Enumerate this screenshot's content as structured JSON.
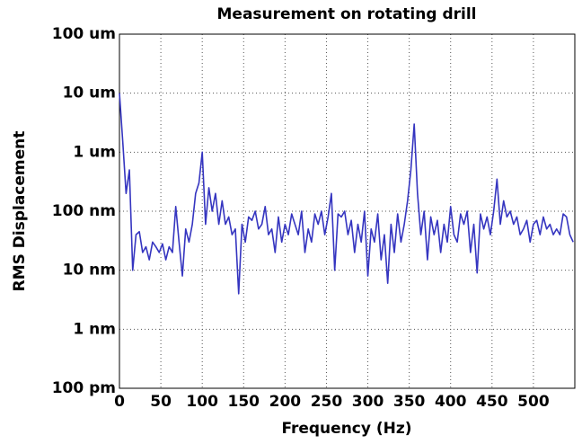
{
  "chart_data": {
    "type": "line",
    "title": "Measurement on rotating drill",
    "x_label": "Frequency (Hz)",
    "y_label": "RMS Displacement",
    "y_scale": "log",
    "grid": true,
    "xlim": [
      0,
      550
    ],
    "xticks": [
      0,
      50,
      100,
      150,
      200,
      250,
      300,
      350,
      400,
      450,
      500
    ],
    "ylim": [
      0.1,
      100000
    ],
    "yticks": [
      {
        "value": 0.1,
        "label": "100 pm"
      },
      {
        "value": 1,
        "label": "1 nm"
      },
      {
        "value": 10,
        "label": "10 nm"
      },
      {
        "value": 100,
        "label": "100 nm"
      },
      {
        "value": 1000,
        "label": "1 um"
      },
      {
        "value": 10000,
        "label": "10 um"
      },
      {
        "value": 100000,
        "label": "100 um"
      }
    ],
    "x": [
      0,
      4,
      8,
      12,
      16,
      20,
      24,
      28,
      32,
      36,
      40,
      44,
      48,
      52,
      56,
      60,
      64,
      68,
      72,
      76,
      80,
      84,
      88,
      92,
      96,
      100,
      104,
      108,
      112,
      116,
      120,
      124,
      128,
      132,
      136,
      140,
      144,
      148,
      152,
      156,
      160,
      164,
      168,
      172,
      176,
      180,
      184,
      188,
      192,
      196,
      200,
      204,
      208,
      212,
      216,
      220,
      224,
      228,
      232,
      236,
      240,
      244,
      248,
      252,
      256,
      260,
      264,
      268,
      272,
      276,
      280,
      284,
      288,
      292,
      296,
      300,
      304,
      308,
      312,
      316,
      320,
      324,
      328,
      332,
      336,
      340,
      344,
      348,
      352,
      356,
      360,
      364,
      368,
      372,
      376,
      380,
      384,
      388,
      392,
      396,
      400,
      404,
      408,
      412,
      416,
      420,
      424,
      428,
      432,
      436,
      440,
      444,
      448,
      452,
      456,
      460,
      464,
      468,
      472,
      476,
      480,
      484,
      488,
      492,
      496,
      500,
      504,
      508,
      512,
      516,
      520,
      524,
      528,
      532,
      536,
      540,
      544,
      548
    ],
    "series": [
      {
        "color": "#3535c0",
        "values": [
          10000,
          1500,
          200,
          500,
          10,
          40,
          45,
          20,
          25,
          15,
          30,
          25,
          20,
          28,
          15,
          25,
          20,
          120,
          30,
          8,
          50,
          30,
          60,
          200,
          300,
          1000,
          60,
          250,
          100,
          200,
          60,
          150,
          60,
          80,
          40,
          50,
          4,
          60,
          30,
          80,
          70,
          100,
          50,
          60,
          120,
          40,
          50,
          20,
          80,
          30,
          60,
          40,
          90,
          60,
          40,
          100,
          20,
          50,
          30,
          90,
          60,
          100,
          40,
          80,
          200,
          10,
          90,
          80,
          100,
          40,
          70,
          20,
          60,
          30,
          100,
          8,
          50,
          30,
          90,
          15,
          40,
          6,
          60,
          20,
          90,
          30,
          60,
          150,
          500,
          3000,
          200,
          40,
          100,
          15,
          80,
          40,
          70,
          20,
          60,
          30,
          120,
          40,
          30,
          90,
          60,
          100,
          20,
          60,
          9,
          90,
          50,
          80,
          40,
          100,
          350,
          60,
          150,
          80,
          100,
          60,
          80,
          40,
          50,
          70,
          30,
          60,
          70,
          40,
          80,
          50,
          60,
          40,
          50,
          40,
          90,
          80,
          40,
          30
        ]
      }
    ]
  }
}
